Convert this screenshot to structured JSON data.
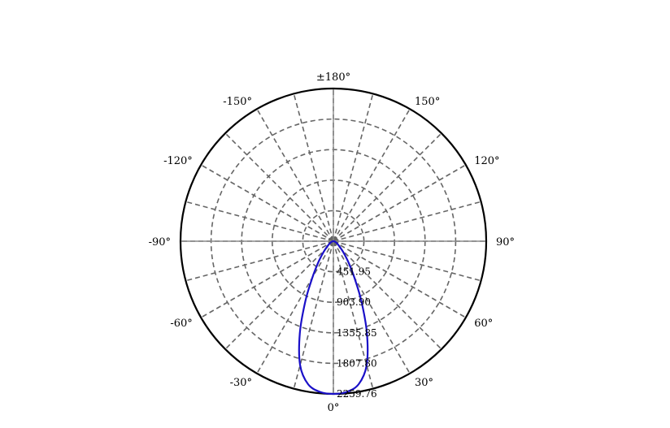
{
  "chart_data": {
    "type": "polar",
    "title": "",
    "angle_ticks": [
      {
        "angle": 180,
        "label": "±180°"
      },
      {
        "angle": 150,
        "label": "150°"
      },
      {
        "angle": 120,
        "label": "120°"
      },
      {
        "angle": 90,
        "label": "90°"
      },
      {
        "angle": 60,
        "label": "60°"
      },
      {
        "angle": 30,
        "label": "30°"
      },
      {
        "angle": 0,
        "label": "0°"
      },
      {
        "angle": -30,
        "label": "-30°"
      },
      {
        "angle": -60,
        "label": "-60°"
      },
      {
        "angle": -90,
        "label": "-90°"
      },
      {
        "angle": -120,
        "label": "-120°"
      },
      {
        "angle": -150,
        "label": "-150°"
      }
    ],
    "radial_ticks": [
      {
        "value": 451.95,
        "label": "451.95"
      },
      {
        "value": 903.9,
        "label": "903.90"
      },
      {
        "value": 1355.85,
        "label": "1355.85"
      },
      {
        "value": 1807.8,
        "label": "1807.80"
      },
      {
        "value": 2259.76,
        "label": "2259.76"
      }
    ],
    "rmax": 2259.76,
    "grid": true,
    "spoke_step_deg": 15,
    "series": [
      {
        "color": "#1a10c8",
        "angles": [
          -90,
          -75,
          -60,
          -45,
          -40,
          -35,
          -30,
          -25,
          -20,
          -15,
          -10,
          -5,
          0,
          5,
          10,
          15,
          20,
          25,
          30,
          35,
          40,
          45,
          60,
          75,
          90
        ],
        "values": [
          0,
          20,
          60,
          170,
          260,
          400,
          620,
          980,
          1450,
          1900,
          2150,
          2240,
          2259.76,
          2240,
          2150,
          1900,
          1450,
          980,
          620,
          400,
          260,
          170,
          60,
          20,
          0
        ]
      }
    ]
  },
  "colors": {
    "grid": "#666666",
    "frame": "#000000",
    "series": "#1a10c8"
  }
}
